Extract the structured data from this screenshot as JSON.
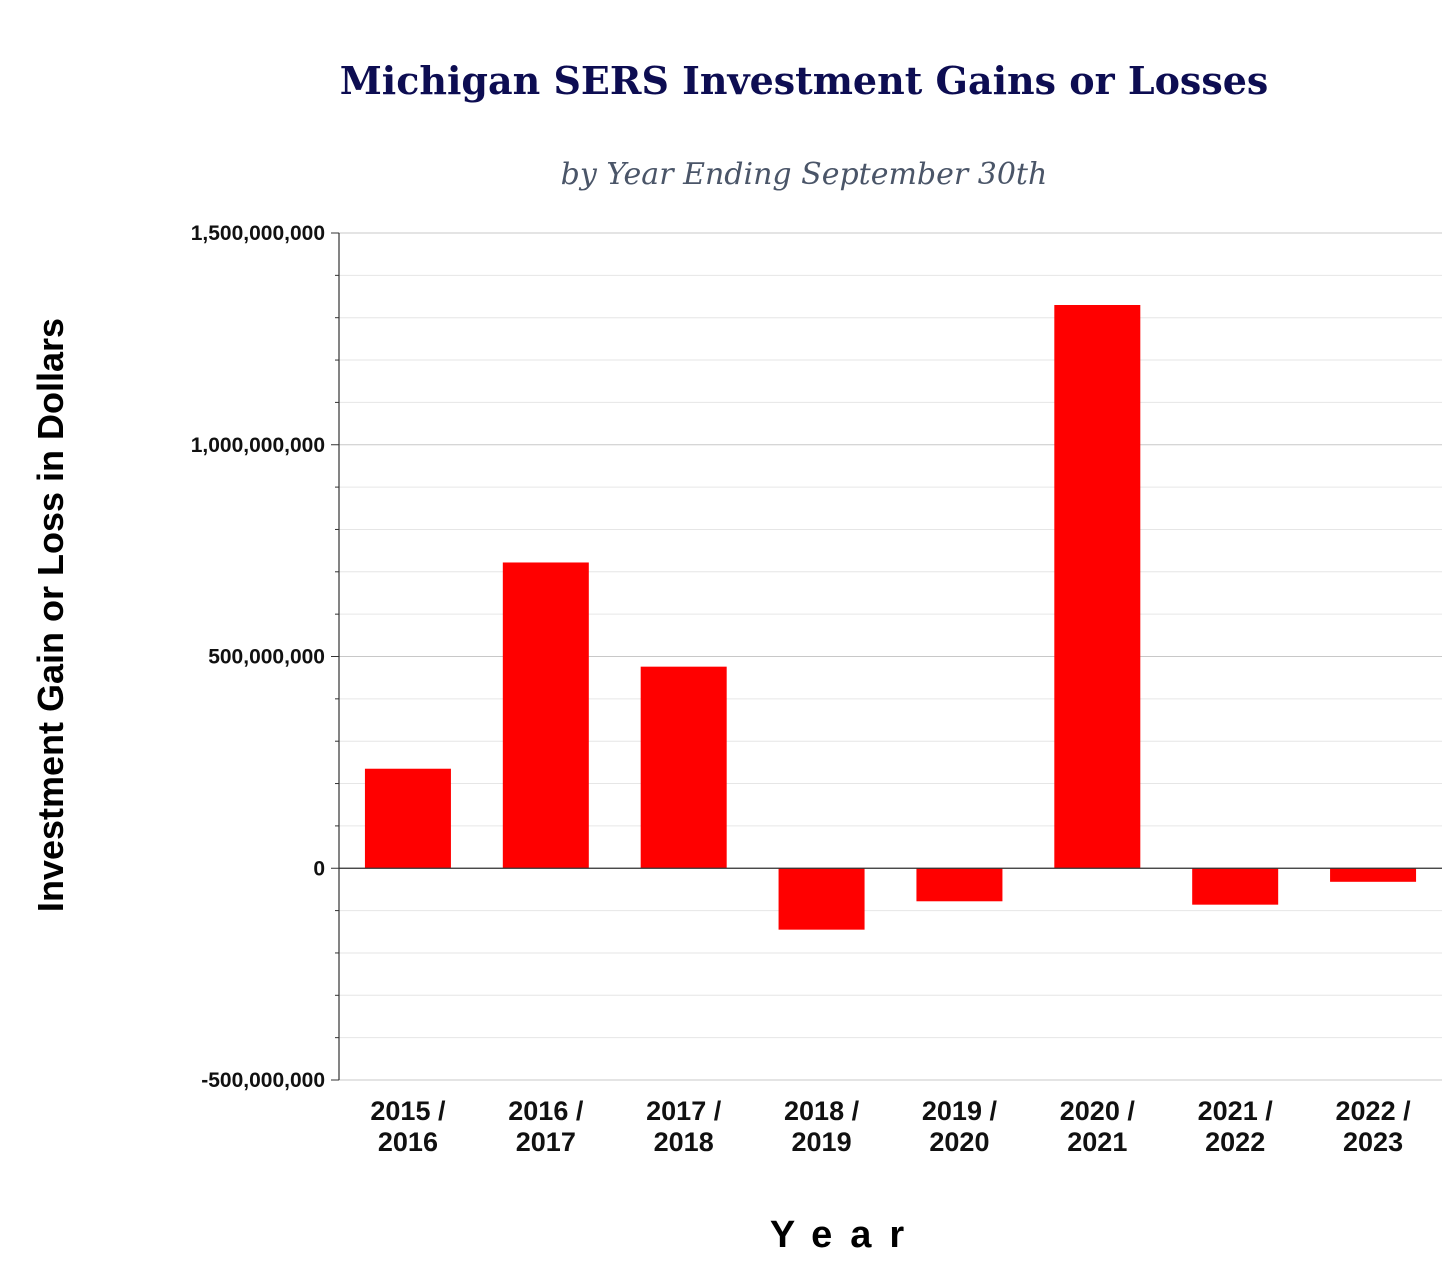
{
  "chart_data": {
    "type": "bar",
    "title": "Michigan SERS Investment Gains or Losses",
    "subtitle": "by Year Ending September 30th",
    "xlabel": "Year",
    "ylabel": "Investment Gain or Loss in Dollars",
    "ylim": [
      -500000000,
      1500000000
    ],
    "major_ticks": [
      1500000000,
      1000000000,
      500000000,
      0,
      -500000000
    ],
    "major_tick_labels": [
      "1,500,000,000",
      "1,000,000,000",
      "500,000,000",
      "0",
      "-500,000,000"
    ],
    "minor_tick_step": 100000000,
    "grid": true,
    "categories": [
      [
        "2015 /",
        "2016"
      ],
      [
        "2016 /",
        "2017"
      ],
      [
        "2017 /",
        "2018"
      ],
      [
        "2018 /",
        "2019"
      ],
      [
        "2019 /",
        "2020"
      ],
      [
        "2020 /",
        "2021"
      ],
      [
        "2021 /",
        "2022"
      ],
      [
        "2022 /",
        "2023"
      ]
    ],
    "values": [
      235000000,
      722000000,
      476000000,
      -145000000,
      -78000000,
      1330000000,
      -86000000,
      -32000000
    ],
    "bar_color": "#ff0000"
  }
}
